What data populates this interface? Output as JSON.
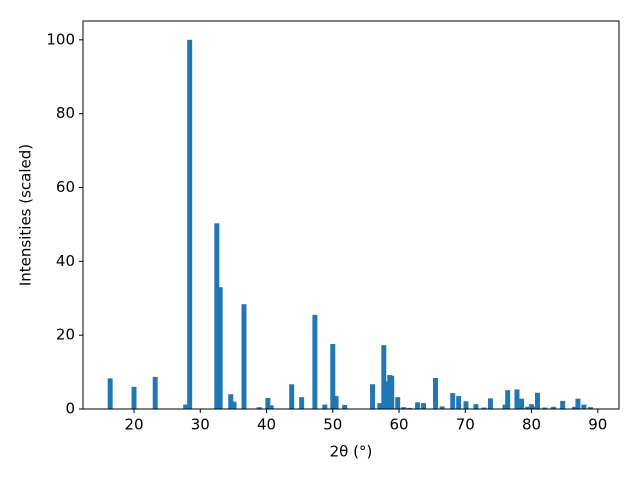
{
  "chart_data": {
    "type": "bar",
    "x": [
      16.4,
      20.0,
      23.2,
      27.8,
      28.4,
      32.5,
      33.0,
      34.6,
      35.1,
      36.6,
      38.9,
      40.2,
      40.7,
      43.8,
      45.3,
      47.3,
      48.8,
      50.0,
      50.5,
      51.8,
      56.0,
      57.1,
      57.7,
      58.2,
      58.6,
      58.9,
      59.8,
      60.7,
      61.6,
      62.8,
      63.7,
      65.5,
      66.5,
      68.1,
      69.0,
      70.1,
      71.6,
      72.8,
      73.8,
      76.0,
      76.4,
      77.8,
      78.5,
      79.4,
      80.0,
      80.5,
      80.9,
      82.0,
      83.3,
      84.7,
      86.5,
      87.0,
      87.9,
      88.9
    ],
    "values": [
      8.3,
      6,
      8.7,
      1.2,
      100,
      50.3,
      33,
      4,
      2,
      28.4,
      0.5,
      3,
      1,
      6.7,
      3.2,
      25.5,
      1.2,
      17.6,
      3.5,
      1.1,
      6.7,
      1.6,
      17.3,
      7.5,
      9.2,
      9,
      3.2,
      0.5,
      0.3,
      1.8,
      1.6,
      8.4,
      0.7,
      4.3,
      3.5,
      2.1,
      1.3,
      0.4,
      2.9,
      1.2,
      5.1,
      5.3,
      2.8,
      0.6,
      1.3,
      0.6,
      4.4,
      0.4,
      0.6,
      2.2,
      0.6,
      2.8,
      1.2,
      0.5
    ],
    "color": "#1f77b4",
    "xlabel": "2θ (°)",
    "ylabel": "Intensities (scaled)",
    "xlim": [
      12.3,
      93.2
    ],
    "xticks": [
      20,
      30,
      40,
      50,
      60,
      70,
      80,
      90
    ],
    "ylim": [
      0,
      105.1
    ],
    "yticks": [
      0,
      20,
      40,
      60,
      80,
      100
    ]
  }
}
